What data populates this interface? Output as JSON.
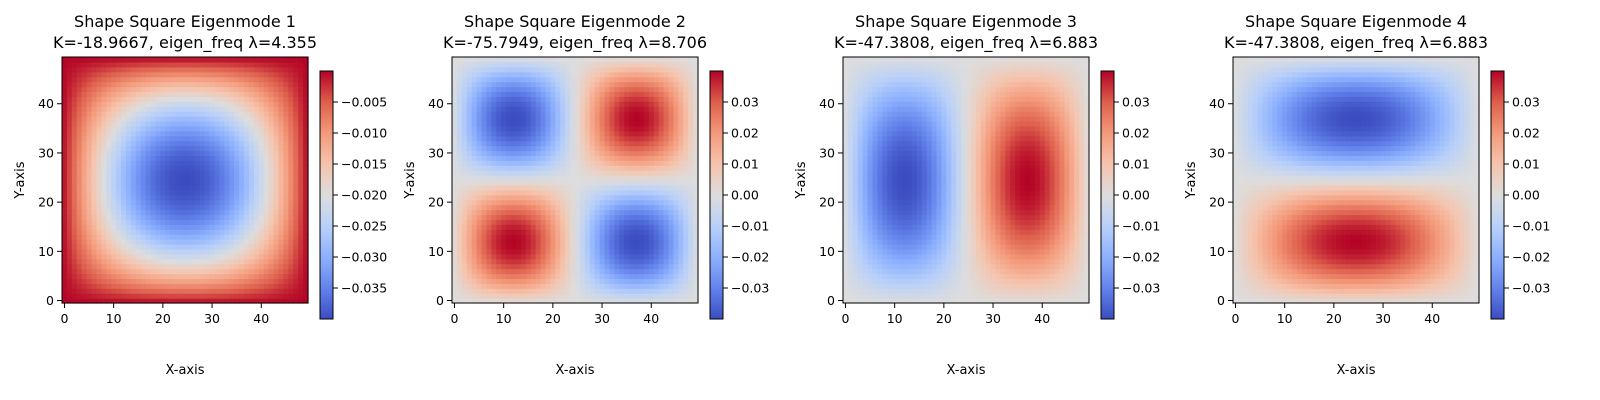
{
  "chart_data": [
    {
      "type": "heatmap",
      "title": "Shape Square Eigenmode 1",
      "subtitle": "K=-18.9667, eigen_freq λ=4.355",
      "xlabel": "X-axis",
      "ylabel": "Y-axis",
      "grid": 50,
      "mode": [
        1,
        1
      ],
      "amplitude": -0.04,
      "xlim": [
        0,
        49
      ],
      "ylim": [
        0,
        49
      ],
      "xticks": [
        "0",
        "10",
        "20",
        "30",
        "40"
      ],
      "yticks": [
        "0",
        "10",
        "20",
        "30",
        "40"
      ],
      "colormap": "coolwarm",
      "colorbar": {
        "min": -0.04,
        "max": 0,
        "ticks": [
          "−0.035",
          "−0.030",
          "−0.025",
          "−0.020",
          "−0.015",
          "−0.010",
          "−0.005"
        ],
        "tick_values": [
          -0.035,
          -0.03,
          -0.025,
          -0.02,
          -0.015,
          -0.01,
          -0.005
        ]
      }
    },
    {
      "type": "heatmap",
      "title": "Shape Square Eigenmode 2",
      "subtitle": "K=-75.7949, eigen_freq λ=8.706",
      "xlabel": "X-axis",
      "ylabel": "Y-axis",
      "grid": 50,
      "mode": [
        2,
        2
      ],
      "amplitude": 0.04,
      "xlim": [
        0,
        49
      ],
      "ylim": [
        0,
        49
      ],
      "xticks": [
        "0",
        "10",
        "20",
        "30",
        "40"
      ],
      "yticks": [
        "0",
        "10",
        "20",
        "30",
        "40"
      ],
      "colormap": "coolwarm",
      "colorbar": {
        "min": -0.04,
        "max": 0.04,
        "ticks": [
          "−0.03",
          "−0.02",
          "−0.01",
          "0.00",
          "0.01",
          "0.02",
          "0.03"
        ],
        "tick_values": [
          -0.03,
          -0.02,
          -0.01,
          0.0,
          0.01,
          0.02,
          0.03
        ]
      }
    },
    {
      "type": "heatmap",
      "title": "Shape Square Eigenmode 3",
      "subtitle": "K=-47.3808, eigen_freq λ=6.883",
      "xlabel": "X-axis",
      "ylabel": "Y-axis",
      "grid": 50,
      "mode": [
        2,
        1
      ],
      "amplitude": -0.04,
      "xlim": [
        0,
        49
      ],
      "ylim": [
        0,
        49
      ],
      "xticks": [
        "0",
        "10",
        "20",
        "30",
        "40"
      ],
      "yticks": [
        "0",
        "10",
        "20",
        "30",
        "40"
      ],
      "colormap": "coolwarm",
      "colorbar": {
        "min": -0.04,
        "max": 0.04,
        "ticks": [
          "−0.03",
          "−0.02",
          "−0.01",
          "0.00",
          "0.01",
          "0.02",
          "0.03"
        ],
        "tick_values": [
          -0.03,
          -0.02,
          -0.01,
          0.0,
          0.01,
          0.02,
          0.03
        ]
      }
    },
    {
      "type": "heatmap",
      "title": "Shape Square Eigenmode 4",
      "subtitle": "K=-47.3808, eigen_freq λ=6.883",
      "xlabel": "X-axis",
      "ylabel": "Y-axis",
      "grid": 50,
      "mode": [
        1,
        2
      ],
      "amplitude": 0.04,
      "xlim": [
        0,
        49
      ],
      "ylim": [
        0,
        49
      ],
      "xticks": [
        "0",
        "10",
        "20",
        "30",
        "40"
      ],
      "yticks": [
        "0",
        "10",
        "20",
        "30",
        "40"
      ],
      "colormap": "coolwarm",
      "colorbar": {
        "min": -0.04,
        "max": 0.04,
        "ticks": [
          "−0.03",
          "−0.02",
          "−0.01",
          "0.00",
          "0.01",
          "0.02",
          "0.03"
        ],
        "tick_values": [
          -0.03,
          -0.02,
          -0.01,
          0.0,
          0.01,
          0.02,
          0.03
        ]
      }
    }
  ]
}
